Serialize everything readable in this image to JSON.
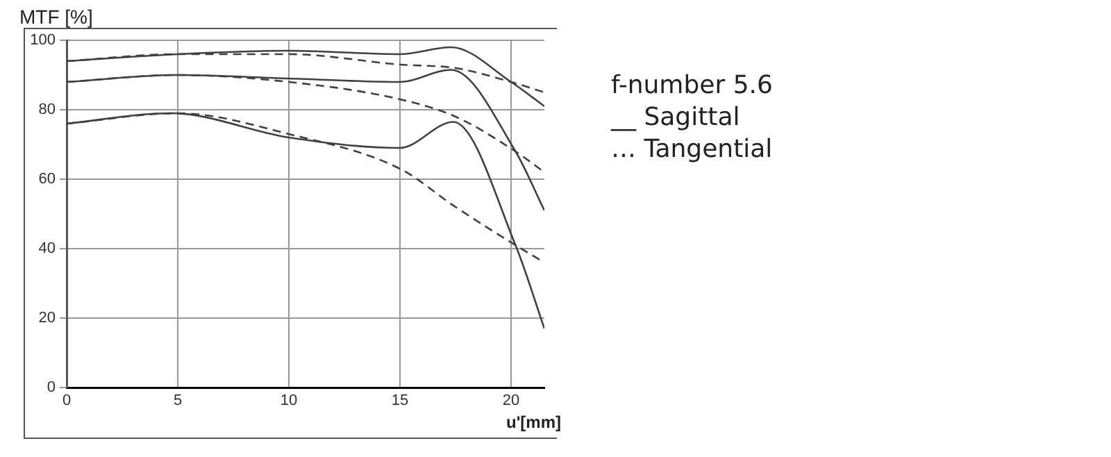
{
  "chart_data": {
    "type": "line",
    "xlabel": "u'[mm]",
    "ylabel": "MTF [%]",
    "xlim": [
      0,
      21.5
    ],
    "xticks": [
      0,
      5,
      10,
      15,
      20
    ],
    "ylim": [
      0,
      100
    ],
    "yticks": [
      0,
      20,
      40,
      60,
      80,
      100
    ],
    "grid": true,
    "legend": false,
    "marker": "none",
    "annotations": [
      "f-number 5.6",
      "__ Sagittal",
      "… Tangential"
    ],
    "series": [
      {
        "color": "#404040",
        "line_style": "solid",
        "x": [
          0,
          5,
          10,
          15,
          17.3,
          20,
          21.5
        ],
        "values": [
          94,
          96,
          97,
          96,
          98,
          88,
          81
        ]
      },
      {
        "color": "#404040",
        "line_style": "solid",
        "x": [
          0,
          5,
          10,
          15,
          17.3,
          20.2,
          21.5
        ],
        "values": [
          88,
          90,
          89,
          88,
          91.5,
          68,
          51
        ]
      },
      {
        "color": "#404040",
        "line_style": "solid",
        "x": [
          0,
          4.7,
          10,
          15,
          17.4,
          20.2,
          21.5
        ],
        "values": [
          76,
          79,
          72,
          69,
          76.5,
          41,
          17
        ]
      },
      {
        "color": "#404040",
        "line_style": "dashed",
        "x": [
          0,
          5,
          10,
          15,
          17.5,
          20,
          21.5
        ],
        "values": [
          94,
          96,
          96,
          93,
          92,
          88,
          85
        ]
      },
      {
        "color": "#404040",
        "line_style": "dashed",
        "x": [
          0,
          5,
          10,
          15,
          17.5,
          20.2,
          21.5
        ],
        "values": [
          88,
          90,
          88,
          83,
          78,
          68,
          62
        ]
      },
      {
        "color": "#404040",
        "line_style": "dashed",
        "x": [
          0,
          5,
          10,
          15,
          17.5,
          20.2,
          21.5
        ],
        "values": [
          76,
          79,
          73,
          63,
          52,
          41,
          36
        ]
      }
    ]
  }
}
